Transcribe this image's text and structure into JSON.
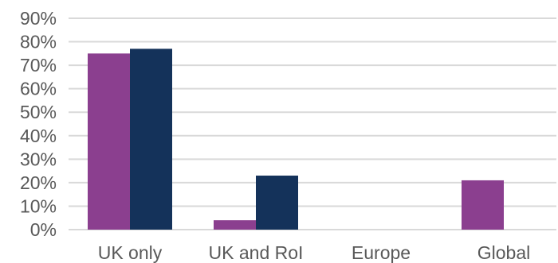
{
  "chart_data": {
    "type": "bar",
    "title": "",
    "xlabel": "",
    "ylabel": "",
    "ylim": [
      0,
      90
    ],
    "yticks": [
      0,
      10,
      20,
      30,
      40,
      50,
      60,
      70,
      80,
      90
    ],
    "ytick_labels": [
      "0%",
      "10%",
      "20%",
      "30%",
      "40%",
      "50%",
      "60%",
      "70%",
      "80%",
      "90%"
    ],
    "categories": [
      "UK only",
      "UK and RoI",
      "Europe",
      "Global"
    ],
    "series": [
      {
        "color": "#8b3f8f",
        "values": [
          75,
          4,
          0,
          21
        ]
      },
      {
        "color": "#14325a",
        "values": [
          77,
          23,
          0,
          0
        ]
      }
    ],
    "grid": true,
    "legend": "none"
  }
}
